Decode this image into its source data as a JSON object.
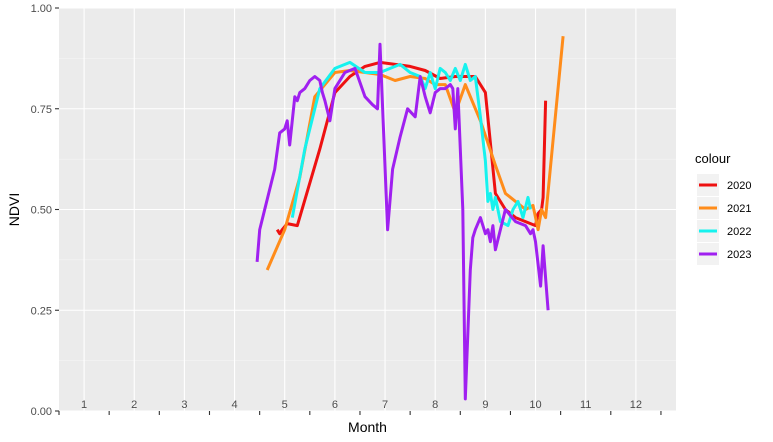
{
  "chart_data": {
    "type": "line",
    "xlabel": "Month",
    "ylabel": "NDVI",
    "ylim": [
      0,
      1
    ],
    "xlim": [
      0.5,
      12.8
    ],
    "y_ticks": [
      "0.00",
      "0.25",
      "0.50",
      "0.75",
      "1.00"
    ],
    "y_tick_values": [
      0,
      0.25,
      0.5,
      0.75,
      1.0
    ],
    "month_labels": [
      "1",
      "2",
      "3",
      "4",
      "5",
      "6",
      "7",
      "8",
      "9",
      "10",
      "11",
      "12"
    ],
    "grid": true,
    "legend": {
      "title": "colour",
      "position": "right"
    },
    "series": [
      {
        "name": "2020",
        "color": "#ee1111",
        "x": [
          4.85,
          4.9,
          4.95,
          5.05,
          5.25,
          5.7,
          6.0,
          6.3,
          6.6,
          6.9,
          7.2,
          7.5,
          7.8,
          8.1,
          8.4,
          8.6,
          8.8,
          9.0,
          9.2,
          9.4,
          9.6,
          9.8,
          10.0,
          10.05,
          10.12,
          10.15,
          10.2
        ],
        "y": [
          0.45,
          0.44,
          0.45,
          0.465,
          0.46,
          0.65,
          0.79,
          0.83,
          0.855,
          0.865,
          0.86,
          0.855,
          0.845,
          0.825,
          0.83,
          0.83,
          0.83,
          0.79,
          0.54,
          0.5,
          0.48,
          0.47,
          0.46,
          0.49,
          0.5,
          0.53,
          0.77
        ]
      },
      {
        "name": "2021",
        "color": "#ff8c1a",
        "x": [
          4.65,
          5.0,
          5.3,
          5.6,
          6.0,
          6.3,
          6.6,
          6.9,
          7.2,
          7.5,
          7.8,
          8.0,
          8.2,
          8.4,
          8.6,
          8.9,
          9.2,
          9.4,
          9.6,
          9.8,
          9.95,
          10.05,
          10.12,
          10.2,
          10.55
        ],
        "y": [
          0.35,
          0.45,
          0.58,
          0.78,
          0.84,
          0.845,
          0.84,
          0.835,
          0.82,
          0.83,
          0.825,
          0.81,
          0.81,
          0.74,
          0.81,
          0.72,
          0.61,
          0.54,
          0.52,
          0.5,
          0.51,
          0.45,
          0.5,
          0.48,
          0.93
        ]
      },
      {
        "name": "2022",
        "color": "#16f2ee",
        "x": [
          5.15,
          5.4,
          5.7,
          6.0,
          6.3,
          6.6,
          6.9,
          7.1,
          7.3,
          7.5,
          7.7,
          7.8,
          7.9,
          8.0,
          8.1,
          8.2,
          8.3,
          8.4,
          8.5,
          8.6,
          8.7,
          8.8,
          8.9,
          9.0,
          9.05,
          9.1,
          9.15,
          9.2,
          9.3,
          9.45,
          9.55,
          9.65,
          9.75,
          9.85,
          9.9
        ],
        "y": [
          0.48,
          0.65,
          0.8,
          0.85,
          0.865,
          0.84,
          0.84,
          0.85,
          0.86,
          0.84,
          0.83,
          0.8,
          0.84,
          0.8,
          0.85,
          0.84,
          0.82,
          0.85,
          0.82,
          0.86,
          0.82,
          0.83,
          0.73,
          0.62,
          0.52,
          0.54,
          0.5,
          0.53,
          0.47,
          0.46,
          0.5,
          0.52,
          0.48,
          0.53,
          0.5
        ]
      },
      {
        "name": "2023",
        "color": "#a020f0",
        "x": [
          4.45,
          4.5,
          4.6,
          4.8,
          4.9,
          5.0,
          5.05,
          5.1,
          5.2,
          5.25,
          5.3,
          5.4,
          5.5,
          5.6,
          5.7,
          5.75,
          5.8,
          5.9,
          6.0,
          6.2,
          6.4,
          6.6,
          6.75,
          6.85,
          6.9,
          7.05,
          7.15,
          7.3,
          7.45,
          7.6,
          7.7,
          7.8,
          7.9,
          8.0,
          8.1,
          8.2,
          8.3,
          8.35,
          8.4,
          8.45,
          8.55,
          8.6,
          8.7,
          8.75,
          8.8,
          8.9,
          9.0,
          9.05,
          9.1,
          9.15,
          9.2,
          9.4,
          9.6,
          9.8,
          9.9,
          9.95,
          10.0,
          10.1,
          10.15,
          10.25
        ],
        "y": [
          0.37,
          0.45,
          0.5,
          0.6,
          0.69,
          0.7,
          0.72,
          0.66,
          0.78,
          0.77,
          0.79,
          0.8,
          0.82,
          0.83,
          0.82,
          0.79,
          0.77,
          0.72,
          0.8,
          0.84,
          0.85,
          0.78,
          0.76,
          0.75,
          0.91,
          0.45,
          0.6,
          0.68,
          0.75,
          0.73,
          0.83,
          0.78,
          0.74,
          0.79,
          0.8,
          0.8,
          0.81,
          0.8,
          0.7,
          0.8,
          0.5,
          0.03,
          0.35,
          0.43,
          0.45,
          0.48,
          0.44,
          0.45,
          0.42,
          0.46,
          0.4,
          0.5,
          0.47,
          0.46,
          0.44,
          0.45,
          0.42,
          0.31,
          0.41,
          0.25
        ]
      }
    ]
  }
}
